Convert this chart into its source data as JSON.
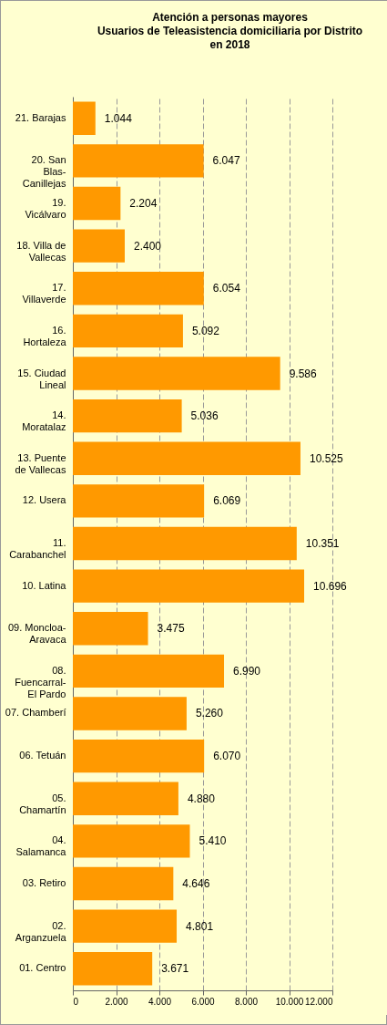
{
  "chart_data": {
    "type": "bar",
    "orientation": "horizontal",
    "title": "Atención a personas mayores\nUsuarios de Teleasistencia domiciliaria por Distrito\nen 2018",
    "categories": [
      "21. Barajas",
      "20. San Blas-Canillejas",
      "19. Vicálvaro",
      "18. Villa de Vallecas",
      "17. Villaverde",
      "16. Hortaleza",
      "15. Ciudad Lineal",
      "14. Moratalaz",
      "13. Puente de Vallecas",
      "12. Usera",
      "11. Carabanchel",
      "10. Latina",
      "09. Moncloa-Aravaca",
      "08. Fuencarral-El Pardo",
      "07. Chamberí",
      "06. Tetuán",
      "05. Chamartín",
      "04. Salamanca",
      "03. Retiro",
      "02. Arganzuela",
      "01. Centro"
    ],
    "values": [
      1044,
      6047,
      2204,
      2400,
      6054,
      5092,
      9586,
      5036,
      10525,
      6069,
      10351,
      10696,
      3475,
      6990,
      5260,
      6070,
      4880,
      5410,
      4646,
      4801,
      3671
    ],
    "value_labels": [
      "1.044",
      "6.047",
      "2.204",
      "2.400",
      "6.054",
      "5.092",
      "9.586",
      "5.036",
      "10.525",
      "6.069",
      "10.351",
      "10.696",
      "3.475",
      "6.990",
      "5.260",
      "6.070",
      "4.880",
      "5.410",
      "4.646",
      "4.801",
      "3.671"
    ],
    "color": "#ff9900",
    "xlim": [
      0,
      12000
    ],
    "xticks": [
      0,
      {
        "value": 2000,
        "label": "2.000"
      },
      {
        "value": 4000,
        "label": "4.000"
      },
      {
        "value": 6000,
        "label": "6.000"
      },
      {
        "value": 8000,
        "label": "8.000"
      },
      {
        "value": 10000,
        "label": "10.000"
      },
      {
        "value": 12000,
        "label": "12.000"
      }
    ],
    "grid": "x"
  }
}
